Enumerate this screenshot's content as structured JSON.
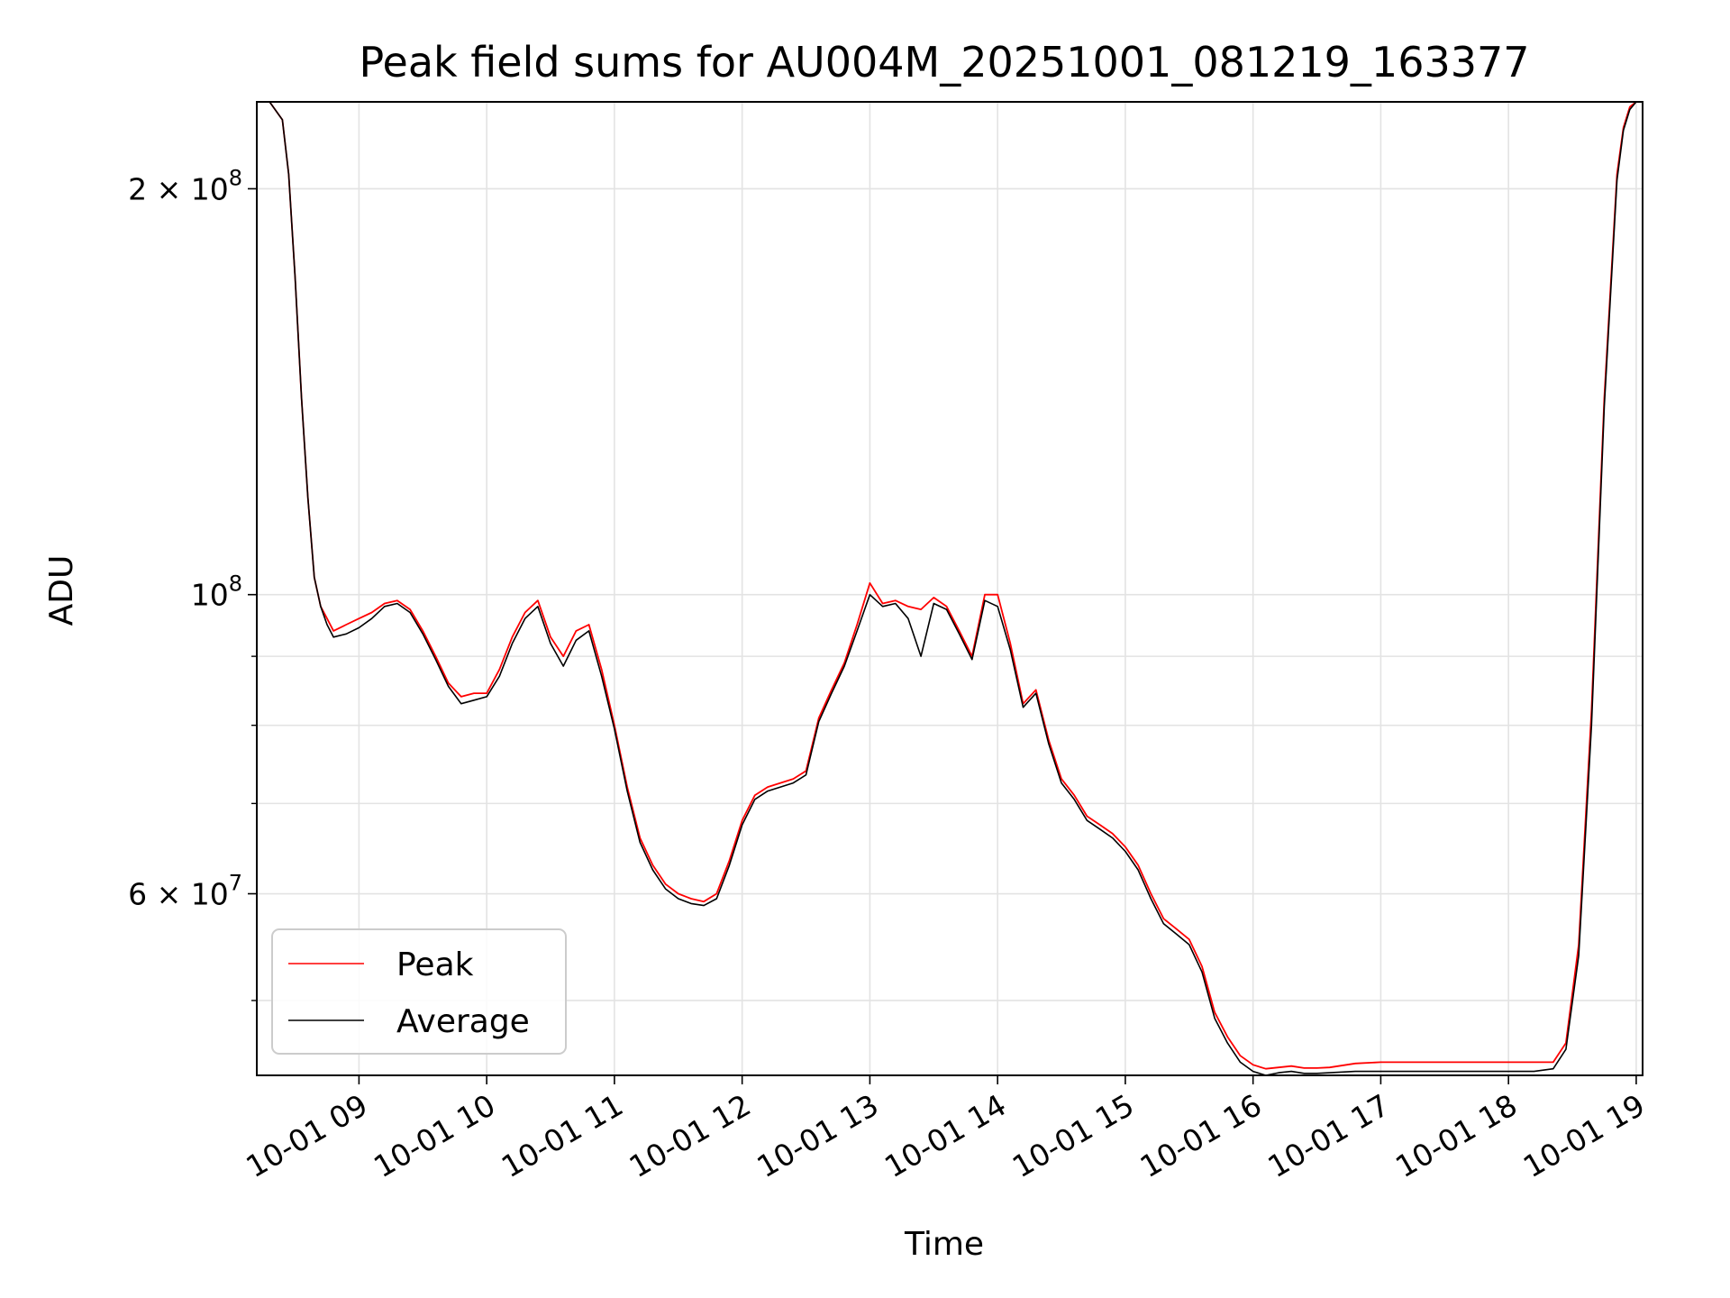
{
  "chart_data": {
    "type": "line",
    "title": "Peak field sums for AU004M_20251001_081219_163377",
    "xlabel": "Time",
    "ylabel": "ADU",
    "yscale": "log",
    "ylim": [
      44000000,
      232000000
    ],
    "xlim": [
      8.2,
      19.05
    ],
    "grid": true,
    "legend_position": "lower-left",
    "x_ticks": [
      {
        "value": 9,
        "label": "10-01 09"
      },
      {
        "value": 10,
        "label": "10-01 10"
      },
      {
        "value": 11,
        "label": "10-01 11"
      },
      {
        "value": 12,
        "label": "10-01 12"
      },
      {
        "value": 13,
        "label": "10-01 13"
      },
      {
        "value": 14,
        "label": "10-01 14"
      },
      {
        "value": 15,
        "label": "10-01 15"
      },
      {
        "value": 16,
        "label": "10-01 16"
      },
      {
        "value": 17,
        "label": "10-01 17"
      },
      {
        "value": 18,
        "label": "10-01 18"
      },
      {
        "value": 19,
        "label": "10-01 19"
      }
    ],
    "y_major_ticks": [
      {
        "value": 60000000,
        "base": "6 × 10",
        "exp": "7"
      },
      {
        "value": 100000000,
        "base": "10",
        "exp": "8"
      },
      {
        "value": 200000000,
        "base": "2 × 10",
        "exp": "8"
      }
    ],
    "y_minor_ticks": [
      50000000,
      70000000,
      80000000,
      90000000
    ],
    "series": [
      {
        "name": "Peak",
        "color": "#ff0000",
        "x": [
          8.3,
          8.4,
          8.45,
          8.5,
          8.55,
          8.6,
          8.65,
          8.7,
          8.75,
          8.8,
          8.9,
          9.0,
          9.1,
          9.2,
          9.3,
          9.4,
          9.5,
          9.6,
          9.7,
          9.8,
          9.9,
          10.0,
          10.1,
          10.2,
          10.3,
          10.4,
          10.5,
          10.6,
          10.7,
          10.8,
          10.9,
          11.0,
          11.1,
          11.2,
          11.3,
          11.4,
          11.5,
          11.6,
          11.7,
          11.8,
          11.9,
          12.0,
          12.1,
          12.2,
          12.3,
          12.4,
          12.5,
          12.6,
          12.7,
          12.8,
          12.9,
          13.0,
          13.1,
          13.2,
          13.3,
          13.4,
          13.5,
          13.6,
          13.7,
          13.8,
          13.9,
          14.0,
          14.1,
          14.2,
          14.3,
          14.4,
          14.5,
          14.6,
          14.7,
          14.8,
          14.9,
          15.0,
          15.1,
          15.2,
          15.3,
          15.4,
          15.5,
          15.6,
          15.7,
          15.8,
          15.9,
          16.0,
          16.1,
          16.2,
          16.3,
          16.4,
          16.5,
          16.6,
          16.8,
          17.0,
          17.2,
          17.4,
          17.6,
          17.8,
          18.0,
          18.2,
          18.35,
          18.45,
          18.55,
          18.65,
          18.75,
          18.85,
          18.9,
          18.95,
          19.0,
          19.05
        ],
        "y": [
          232000000,
          225000000,
          205000000,
          172000000,
          140000000,
          118000000,
          103000000,
          98000000,
          96000000,
          94000000,
          95000000,
          96000000,
          97000000,
          98500000,
          99000000,
          97500000,
          94000000,
          90000000,
          86000000,
          84000000,
          84500000,
          84500000,
          88000000,
          93000000,
          97000000,
          99000000,
          93000000,
          90000000,
          94000000,
          95000000,
          88000000,
          80000000,
          72000000,
          66000000,
          63000000,
          61000000,
          60000000,
          59500000,
          59200000,
          60000000,
          63500000,
          68000000,
          71000000,
          72000000,
          72500000,
          73000000,
          74000000,
          81000000,
          85000000,
          89000000,
          95000000,
          102000000,
          98500000,
          99000000,
          98000000,
          97500000,
          99500000,
          98000000,
          94000000,
          90000000,
          100000000,
          100000000,
          92000000,
          83000000,
          85000000,
          78000000,
          73000000,
          71000000,
          68500000,
          67500000,
          66500000,
          65000000,
          63000000,
          60000000,
          57500000,
          56500000,
          55500000,
          53000000,
          49000000,
          47000000,
          45500000,
          44800000,
          44500000,
          44600000,
          44700000,
          44550000,
          44550000,
          44600000,
          44900000,
          45000000,
          45000000,
          45000000,
          45000000,
          45000000,
          45000000,
          45000000,
          45000000,
          46500000,
          55000000,
          82000000,
          140000000,
          205000000,
          222000000,
          230000000,
          232000000,
          232000000
        ]
      },
      {
        "name": "Average",
        "color": "#000000",
        "x": [
          8.3,
          8.4,
          8.45,
          8.5,
          8.55,
          8.6,
          8.65,
          8.7,
          8.75,
          8.8,
          8.9,
          9.0,
          9.1,
          9.2,
          9.3,
          9.4,
          9.5,
          9.6,
          9.7,
          9.8,
          9.9,
          10.0,
          10.1,
          10.2,
          10.3,
          10.4,
          10.5,
          10.6,
          10.7,
          10.8,
          10.9,
          11.0,
          11.1,
          11.2,
          11.3,
          11.4,
          11.5,
          11.6,
          11.7,
          11.8,
          11.9,
          12.0,
          12.1,
          12.2,
          12.3,
          12.4,
          12.5,
          12.6,
          12.7,
          12.8,
          12.9,
          13.0,
          13.1,
          13.2,
          13.3,
          13.4,
          13.5,
          13.6,
          13.7,
          13.8,
          13.9,
          14.0,
          14.1,
          14.2,
          14.3,
          14.4,
          14.5,
          14.6,
          14.7,
          14.8,
          14.9,
          15.0,
          15.1,
          15.2,
          15.3,
          15.4,
          15.5,
          15.6,
          15.7,
          15.8,
          15.9,
          16.0,
          16.1,
          16.2,
          16.3,
          16.4,
          16.5,
          16.6,
          16.8,
          17.0,
          17.2,
          17.4,
          17.6,
          17.8,
          18.0,
          18.2,
          18.35,
          18.45,
          18.55,
          18.65,
          18.75,
          18.85,
          18.9,
          18.95,
          19.0,
          19.05
        ],
        "y": [
          232000000,
          225000000,
          205000000,
          172000000,
          140000000,
          118000000,
          103000000,
          98000000,
          95000000,
          93000000,
          93500000,
          94500000,
          96000000,
          98000000,
          98500000,
          97000000,
          93500000,
          89500000,
          85500000,
          83000000,
          83500000,
          84000000,
          87000000,
          92000000,
          96000000,
          98000000,
          92000000,
          88500000,
          92500000,
          94000000,
          87000000,
          79500000,
          71500000,
          65500000,
          62500000,
          60500000,
          59500000,
          59000000,
          58800000,
          59500000,
          63000000,
          67500000,
          70500000,
          71500000,
          72000000,
          72500000,
          73500000,
          80500000,
          84500000,
          88500000,
          94000000,
          100000000,
          98000000,
          98500000,
          96000000,
          90000000,
          98500000,
          97500000,
          93500000,
          89500000,
          99000000,
          98000000,
          91000000,
          82500000,
          84500000,
          77500000,
          72500000,
          70500000,
          68000000,
          67000000,
          66000000,
          64500000,
          62500000,
          59500000,
          57000000,
          56000000,
          55000000,
          52500000,
          48500000,
          46500000,
          45000000,
          44300000,
          44000000,
          44200000,
          44300000,
          44150000,
          44150000,
          44200000,
          44300000,
          44300000,
          44300000,
          44300000,
          44300000,
          44300000,
          44300000,
          44300000,
          44500000,
          46000000,
          54000000,
          80000000,
          138000000,
          203000000,
          221000000,
          229000000,
          232000000,
          232000000
        ]
      }
    ]
  }
}
